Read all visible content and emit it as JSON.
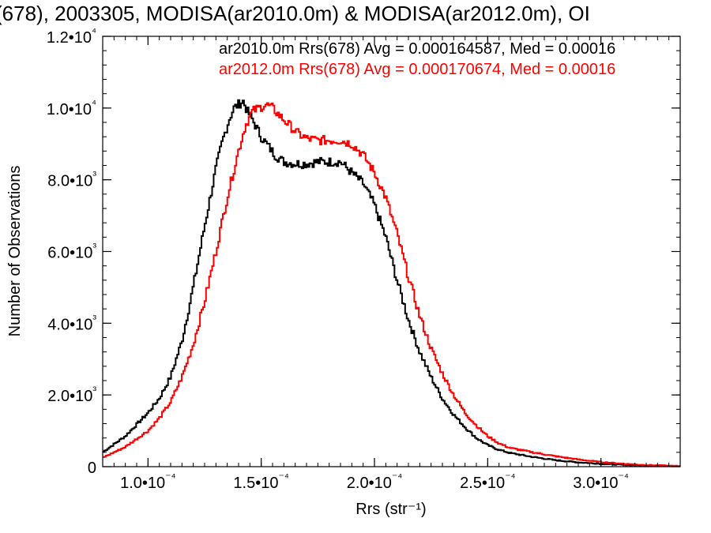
{
  "chart_data": {
    "type": "line",
    "title": "(678), 2003305, MODISA(ar2010.0m) & MODISA(ar2012.0m), OI",
    "xlabel": "Rrs (str⁻¹)",
    "ylabel": "Number of Observations",
    "xlim": [
      8e-05,
      0.000335
    ],
    "ylim": [
      0,
      12000
    ],
    "x_ticks": [
      {
        "value": 0.0001,
        "label": "1.0•10⁻⁴"
      },
      {
        "value": 0.00015,
        "label": "1.5•10⁻⁴"
      },
      {
        "value": 0.0002,
        "label": "2.0•10⁻⁴"
      },
      {
        "value": 0.00025,
        "label": "2.5•10⁻⁴"
      },
      {
        "value": 0.0003,
        "label": "3.0•10⁻⁴"
      }
    ],
    "y_ticks": [
      {
        "value": 0,
        "label": "0"
      },
      {
        "value": 2000,
        "label": "2.0•10³"
      },
      {
        "value": 4000,
        "label": "4.0•10³"
      },
      {
        "value": 6000,
        "label": "6.0•10³"
      },
      {
        "value": 8000,
        "label": "8.0•10³"
      },
      {
        "value": 10000,
        "label": "1.0•10⁴"
      },
      {
        "value": 12000,
        "label": "1.2•10⁴"
      }
    ],
    "annotations": [
      {
        "text": "ar2010.0m Rrs(678) Avg = 0.000164587, Med = 0.00016",
        "color": "#000000"
      },
      {
        "text": "ar2012.0m Rrs(678) Avg = 0.000170674, Med = 0.00016",
        "color": "#ff0000"
      }
    ],
    "grid": false,
    "series": [
      {
        "color": "#000000",
        "x": [
          8e-05,
          9e-05,
          0.0001,
          0.000105,
          0.00011,
          0.000115,
          0.00012,
          0.000125,
          0.00013,
          0.000133,
          0.000136,
          0.000138,
          0.00014,
          0.000142,
          0.000144,
          0.000146,
          0.000148,
          0.00015,
          0.000153,
          0.000156,
          0.00016,
          0.000165,
          0.00017,
          0.000175,
          0.00018,
          0.000185,
          0.00019,
          0.000195,
          0.0002,
          0.000205,
          0.00021,
          0.000215,
          0.00022,
          0.000225,
          0.00023,
          0.000235,
          0.00024,
          0.000245,
          0.00025,
          0.000255,
          0.00026,
          0.00027,
          0.00028,
          0.00029,
          0.0003,
          0.00031,
          0.00032,
          0.000335
        ],
        "values": [
          400,
          850,
          1500,
          1900,
          2500,
          3500,
          5000,
          6700,
          8300,
          9100,
          9700,
          10000,
          10100,
          10200,
          9900,
          9700,
          9450,
          9200,
          8950,
          8700,
          8500,
          8450,
          8450,
          8500,
          8500,
          8500,
          8200,
          7900,
          7300,
          6400,
          5200,
          4100,
          3200,
          2500,
          1900,
          1450,
          1100,
          800,
          600,
          470,
          380,
          270,
          180,
          120,
          80,
          50,
          30,
          10
        ]
      },
      {
        "color": "#ff0000",
        "x": [
          8e-05,
          9e-05,
          0.0001,
          0.000105,
          0.00011,
          0.000115,
          0.00012,
          0.000125,
          0.00013,
          0.000135,
          0.00014,
          0.000143,
          0.000146,
          0.000149,
          0.000152,
          0.000155,
          0.000158,
          0.000162,
          0.000166,
          0.00017,
          0.000175,
          0.00018,
          0.000185,
          0.00019,
          0.000195,
          0.0002,
          0.000205,
          0.00021,
          0.000215,
          0.00022,
          0.000225,
          0.00023,
          0.000235,
          0.00024,
          0.000245,
          0.00025,
          0.000255,
          0.00026,
          0.00027,
          0.00028,
          0.00029,
          0.0003,
          0.00031,
          0.00032,
          0.000335
        ],
        "values": [
          250,
          550,
          1000,
          1350,
          1800,
          2500,
          3400,
          4600,
          6000,
          7500,
          8800,
          9500,
          9900,
          10000,
          10100,
          10000,
          9800,
          9550,
          9300,
          9150,
          9100,
          9100,
          9100,
          9000,
          8700,
          8200,
          7500,
          6500,
          5300,
          4200,
          3300,
          2600,
          2000,
          1500,
          1150,
          850,
          650,
          520,
          400,
          290,
          200,
          130,
          80,
          45,
          15
        ]
      }
    ]
  }
}
